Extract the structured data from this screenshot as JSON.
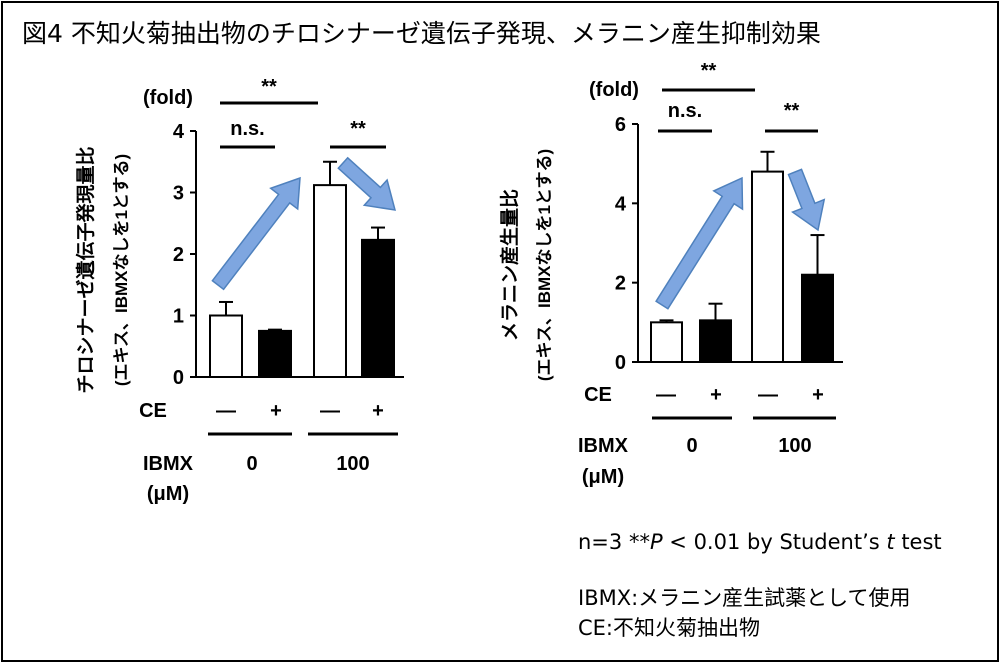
{
  "figure": {
    "title": "図4 不知火菊抽出物のチロシナーゼ遺伝子発現、メラニン産生抑制効果"
  },
  "notes": {
    "stats": "n=3 **P < 0.01 by Student’s t test",
    "ibmx_def": "IBMX:メラニン産生試薬として使用",
    "ce_def": "CE:不知火菊抽出物"
  },
  "colors": {
    "untreated_fill": "#ffffff",
    "ce_fill": "#000000",
    "arrow_fill": "#7ea6e0",
    "arrow_stroke": "#4f81bd"
  },
  "chart_data": [
    {
      "type": "bar",
      "unit_label": "(fold)",
      "ylabel_line1": "チロシナーゼ遺伝子発現量比",
      "ylabel_line2": "(エキス、IBMXなしを1とする)",
      "ylim": [
        0,
        4
      ],
      "yticks": [
        "0",
        "1",
        "2",
        "3",
        "4"
      ],
      "ce_row_label": "CE",
      "ce_values": [
        "—",
        "+",
        "—",
        "+"
      ],
      "ibmx_label": "IBMX",
      "ibmx_unit": "(μM)",
      "ibmx_groups": [
        "0",
        "100"
      ],
      "series": [
        {
          "values": [
            1.0,
            3.12
          ],
          "errors": [
            0.22,
            0.38
          ]
        },
        {
          "values": [
            0.75,
            2.23
          ],
          "errors": [
            0.02,
            0.2
          ]
        }
      ],
      "significance": [
        {
          "label": "n.s.",
          "between": "bars 1-2"
        },
        {
          "label": "**",
          "between": "groups 0-100"
        },
        {
          "label": "**",
          "between": "bars 3-4"
        }
      ]
    },
    {
      "type": "bar",
      "unit_label": "(fold)",
      "ylabel_line1": "メラニン産生量比",
      "ylabel_line2": "(エキス、IBMXなしを1とする)",
      "ylim": [
        0,
        6
      ],
      "yticks": [
        "0",
        "2",
        "4",
        "6"
      ],
      "ce_row_label": "CE",
      "ce_values": [
        "—",
        "+",
        "—",
        "+"
      ],
      "ibmx_label": "IBMX",
      "ibmx_unit": "(μM)",
      "ibmx_groups": [
        "0",
        "100"
      ],
      "series": [
        {
          "values": [
            1.0,
            4.8
          ],
          "errors": [
            0.05,
            0.5
          ]
        },
        {
          "values": [
            1.05,
            2.2
          ],
          "errors": [
            0.42,
            1.0
          ]
        }
      ],
      "significance": [
        {
          "label": "n.s.",
          "between": "bars 1-2"
        },
        {
          "label": "**",
          "between": "groups 0-100"
        },
        {
          "label": "**",
          "between": "bars 3-4"
        }
      ]
    }
  ]
}
